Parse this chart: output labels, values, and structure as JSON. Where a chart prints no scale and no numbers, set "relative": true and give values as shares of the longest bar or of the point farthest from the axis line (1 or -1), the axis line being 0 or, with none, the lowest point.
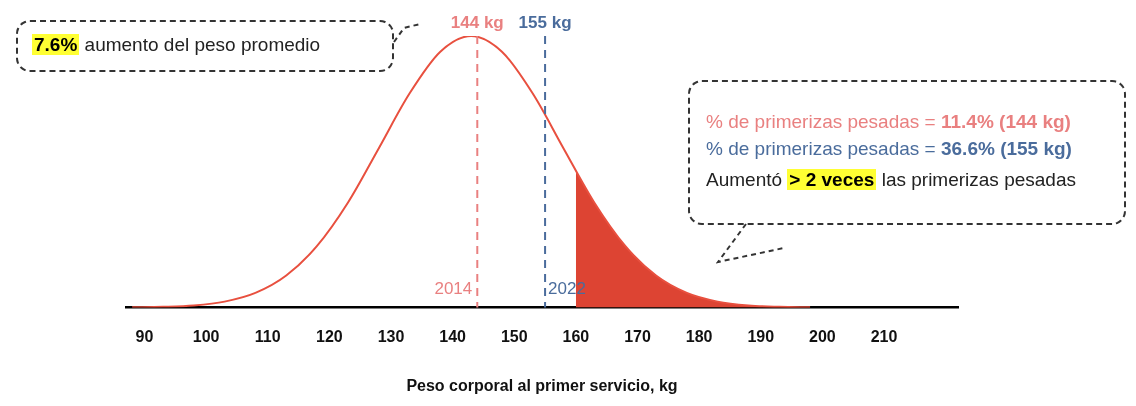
{
  "chart_data": {
    "type": "line",
    "relative": true,
    "marker": "none",
    "xlabel": "Peso corporal al primer servicio, kg",
    "xlim": [
      87,
      222
    ],
    "xticks": [
      90,
      100,
      110,
      120,
      130,
      140,
      150,
      160,
      170,
      180,
      190,
      200,
      210
    ],
    "series": [
      {
        "type": "line",
        "color": "#e8503f",
        "x": [
          88,
          93,
          98,
          103,
          108,
          113,
          118,
          123,
          128,
          133,
          138,
          143,
          148,
          153,
          158,
          163,
          168,
          173,
          178,
          183,
          188,
          193,
          198
        ],
        "values": [
          0.001,
          0.003,
          0.008,
          0.022,
          0.054,
          0.118,
          0.227,
          0.386,
          0.586,
          0.788,
          0.942,
          1,
          0.942,
          0.788,
          0.586,
          0.386,
          0.227,
          0.118,
          0.054,
          0.022,
          0.008,
          0.003,
          0.001
        ]
      },
      {
        "type": "area",
        "color": "#dd4433",
        "x": [
          160,
          163,
          168,
          173,
          178,
          183,
          188,
          193,
          198
        ],
        "values": [
          0.5,
          0.386,
          0.227,
          0.118,
          0.054,
          0.022,
          0.008,
          0.003,
          0.001
        ]
      }
    ],
    "ref_lines": [
      {
        "axis": "x",
        "value": 144,
        "label": "144 kg",
        "color": "#e98080",
        "line_style": "dashed"
      },
      {
        "axis": "x",
        "value": 155,
        "label": "155 kg",
        "color": "#4a6c9c",
        "line_style": "dashed"
      }
    ],
    "annotations": [
      {
        "text": "2014",
        "x": 144,
        "y": 0.05
      },
      {
        "text": "2022",
        "x": 155,
        "y": 0.05
      },
      "7.6%",
      "aumento del peso promedio",
      "% de primerizas pesadas = ",
      "11.4% (144 kg)",
      "% de primerizas pesadas = ",
      "36.6% (155 kg)",
      "Aumentó",
      "> 2 veces",
      "las primerizas pesadas"
    ]
  }
}
